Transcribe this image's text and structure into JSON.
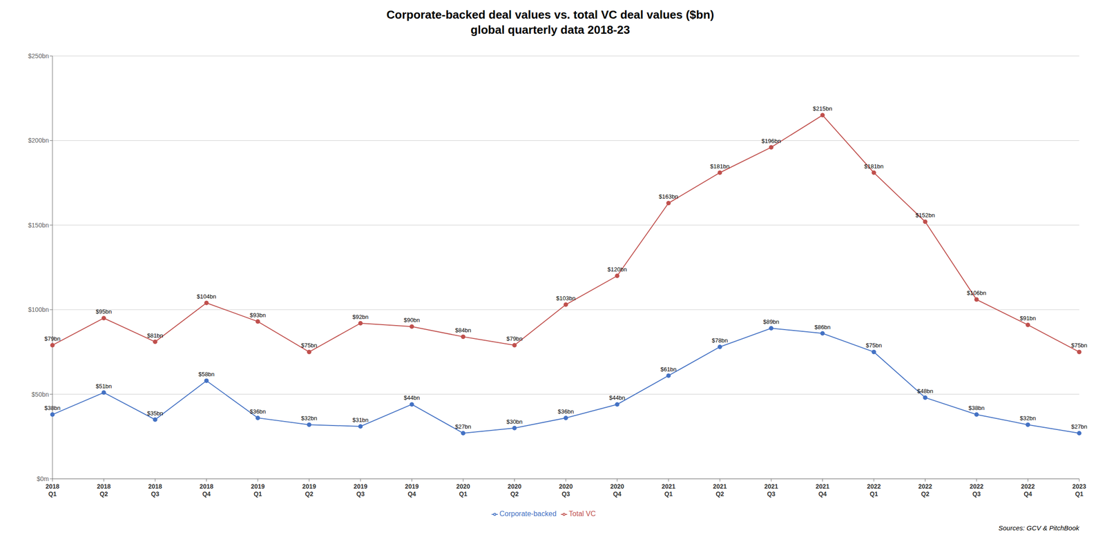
{
  "chart_data": {
    "type": "line",
    "title": "Corporate-backed deal values vs. total VC deal values ($bn)\nglobal quarterly data 2018-23",
    "categories": [
      "2018\nQ1",
      "2018\nQ2",
      "2018\nQ3",
      "2018\nQ4",
      "2019\nQ1",
      "2019\nQ2",
      "2019\nQ3",
      "2019\nQ4",
      "2020\nQ1",
      "2020\nQ2",
      "2020\nQ3",
      "2020\nQ4",
      "2021\nQ1",
      "2021\nQ2",
      "2021\nQ3",
      "2021\nQ4",
      "2022\nQ1",
      "2022\nQ2",
      "2022\nQ3",
      "2022\nQ4",
      "2023\nQ1"
    ],
    "series": [
      {
        "name": "Corporate-backed",
        "color": "#4472c4",
        "marker": "circle",
        "line_style": "solid",
        "values": [
          38,
          51,
          35,
          58,
          36,
          32,
          31,
          44,
          27,
          30,
          36,
          44,
          61,
          78,
          89,
          86,
          75,
          48,
          38,
          32,
          27
        ],
        "value_labels": [
          "$38bn",
          "$51bn",
          "$35bn",
          "$58bn",
          "$36bn",
          "$32bn",
          "$31bn",
          "$44bn",
          "$27bn",
          "$30bn",
          "$36bn",
          "$44bn",
          "$61bn",
          "$78bn",
          "$89bn",
          "$86bn",
          "$75bn",
          "$48bn",
          "$38bn",
          "$32bn",
          "$27bn"
        ]
      },
      {
        "name": "Total VC",
        "color": "#c0504d",
        "marker": "circle",
        "line_style": "solid",
        "values": [
          79,
          95,
          81,
          104,
          93,
          75,
          92,
          90,
          84,
          79,
          103,
          120,
          163,
          181,
          196,
          215,
          181,
          152,
          106,
          91,
          75
        ],
        "value_labels": [
          "$79bn",
          "$95bn",
          "$81bn",
          "$104bn",
          "$93bn",
          "$75bn",
          "$92bn",
          "$90bn",
          "$84bn",
          "$79bn",
          "$103bn",
          "$120bn",
          "$163bn",
          "$181bn",
          "$196bn",
          "$215bn",
          "$181bn",
          "$152bn",
          "$106bn",
          "$91bn",
          "$75bn"
        ]
      }
    ],
    "ylim": [
      0,
      250
    ],
    "yticks": [
      {
        "value": 0,
        "label": "$0m"
      },
      {
        "value": 50,
        "label": "$50bn"
      },
      {
        "value": 100,
        "label": "$100bn"
      },
      {
        "value": 150,
        "label": "$150bn"
      },
      {
        "value": 200,
        "label": "$200bn"
      },
      {
        "value": 250,
        "label": "$250bn"
      }
    ],
    "grid": true,
    "legend": "bottom",
    "data_labels": true,
    "annotations": [
      "Sources: GCV & PitchBook"
    ]
  }
}
